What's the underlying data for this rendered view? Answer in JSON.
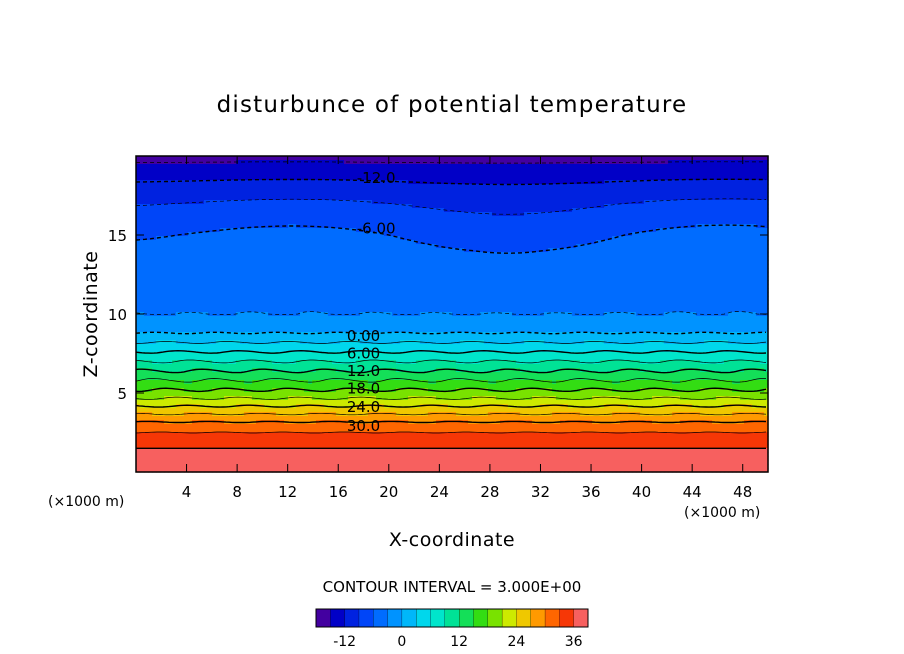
{
  "chart_data": {
    "type": "heatmap",
    "title": "disturbunce of potential temperature",
    "xlabel": "X-coordinate",
    "ylabel": "Z-coordinate",
    "x_unit_left": "(×1000 m)",
    "x_unit_right": "(×1000 m)",
    "xlim": [
      0,
      50
    ],
    "ylim": [
      0,
      20
    ],
    "x_ticks": [
      "4",
      "8",
      "12",
      "16",
      "20",
      "24",
      "28",
      "32",
      "36",
      "40",
      "44",
      "48"
    ],
    "y_ticks": [
      "5",
      "10",
      "15"
    ],
    "x_tick_values": [
      4,
      8,
      12,
      16,
      20,
      24,
      28,
      32,
      36,
      40,
      44,
      48
    ],
    "y_tick_values": [
      5,
      10,
      15
    ],
    "colormap": "rainbow",
    "value_range": [
      -18,
      39
    ],
    "contour_interval_text": "CONTOUR INTERVAL = 3.000E+00",
    "contour_interval": 3,
    "negative_contours_dashed": true,
    "contour_labels": [
      {
        "text": "-12.0",
        "x": 19,
        "y": 18.6
      },
      {
        "text": "-6.00",
        "x": 19,
        "y": 15.4
      },
      {
        "text": "0.00",
        "x": 18,
        "y": 8.6
      },
      {
        "text": "6.00",
        "x": 18,
        "y": 7.5
      },
      {
        "text": "12.0",
        "x": 18,
        "y": 6.4
      },
      {
        "text": "18.0",
        "x": 18,
        "y": 5.3
      },
      {
        "text": "24.0",
        "x": 18,
        "y": 4.1
      },
      {
        "text": "30.0",
        "x": 18,
        "y": 2.9
      }
    ],
    "profile": {
      "z": [
        0,
        1,
        2,
        3,
        4,
        5,
        6,
        7,
        8,
        9,
        10,
        12,
        14,
        15,
        16,
        17,
        18,
        19,
        20
      ],
      "value": [
        38,
        37,
        35,
        31,
        25,
        19,
        14,
        9,
        4,
        -1,
        -3,
        -4,
        -5,
        -6,
        -7.5,
        -9,
        -11,
        -13.5,
        -16
      ]
    },
    "colorbar": {
      "min": -18,
      "max": 39,
      "ticks": [
        "-12",
        "0",
        "12",
        "24",
        "36"
      ],
      "tick_values": [
        -12,
        0,
        12,
        24,
        36
      ]
    }
  }
}
